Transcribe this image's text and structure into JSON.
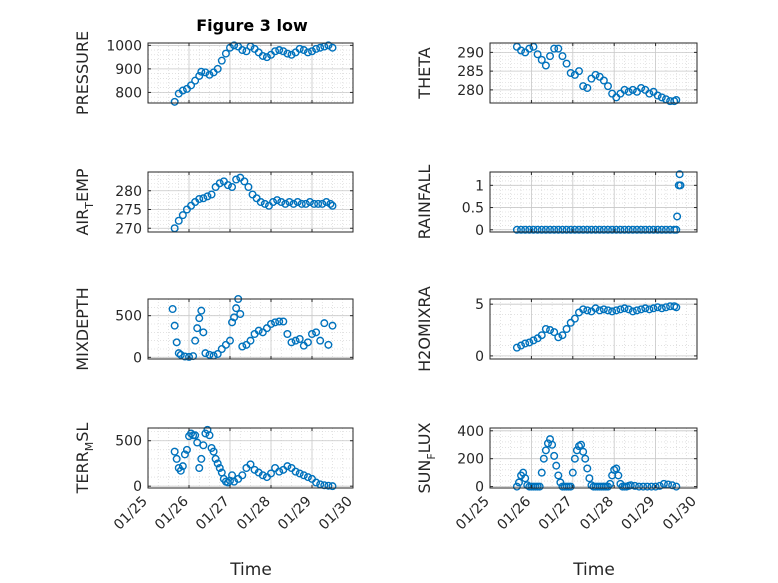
{
  "title": "Figure 3 low",
  "xlabel": "Time",
  "marker_color": "#0072BD",
  "grid": true,
  "chart_data": [
    {
      "type": "scatter",
      "title": "Figure 3 low",
      "ylabel": "PRESSURE",
      "ylim": [
        755,
        1010
      ],
      "yticks": [
        800,
        900,
        1000
      ],
      "xlim": [
        25,
        30
      ],
      "x": [
        25.65,
        25.75,
        25.85,
        25.95,
        26.05,
        26.15,
        26.25,
        26.3,
        26.4,
        26.5,
        26.6,
        26.7,
        26.8,
        26.9,
        27.0,
        27.1,
        27.2,
        27.3,
        27.4,
        27.5,
        27.6,
        27.7,
        27.8,
        27.9,
        28.0,
        28.1,
        28.2,
        28.3,
        28.4,
        28.5,
        28.6,
        28.7,
        28.8,
        28.9,
        29.0,
        29.1,
        29.2,
        29.3,
        29.4,
        29.5
      ],
      "y": [
        760,
        795,
        808,
        815,
        830,
        850,
        870,
        888,
        885,
        875,
        885,
        900,
        935,
        965,
        990,
        1000,
        995,
        980,
        975,
        995,
        985,
        970,
        955,
        950,
        960,
        975,
        980,
        975,
        965,
        960,
        970,
        985,
        980,
        970,
        975,
        985,
        990,
        995,
        1000,
        990
      ]
    },
    {
      "type": "scatter",
      "ylabel": "THETA",
      "ylim": [
        276.5,
        292.5
      ],
      "yticks": [
        280,
        285,
        290
      ],
      "xlim": [
        25,
        30
      ],
      "x": [
        25.65,
        25.75,
        25.85,
        25.95,
        26.05,
        26.15,
        26.25,
        26.35,
        26.45,
        26.55,
        26.65,
        26.75,
        26.85,
        26.95,
        27.05,
        27.15,
        27.25,
        27.35,
        27.45,
        27.55,
        27.65,
        27.75,
        27.85,
        27.95,
        28.05,
        28.15,
        28.25,
        28.35,
        28.45,
        28.55,
        28.65,
        28.75,
        28.85,
        28.95,
        29.05,
        29.15,
        29.25,
        29.35,
        29.45,
        29.5
      ],
      "y": [
        291.5,
        290.5,
        290,
        291,
        291.5,
        289.5,
        288,
        286.5,
        289,
        291,
        291,
        289,
        287,
        284.5,
        284,
        285,
        281,
        280.5,
        283,
        284,
        283.5,
        282.5,
        281,
        279,
        278,
        279,
        280,
        279.5,
        280,
        279.5,
        280.5,
        280,
        279,
        279.5,
        278.5,
        278,
        277.5,
        277,
        277,
        277.3
      ]
    },
    {
      "type": "scatter",
      "ylabel": "AIR",
      "ylabel_sub": "T",
      "ylabel_suffix": "EMP",
      "ylim": [
        269,
        285
      ],
      "yticks": [
        270,
        275,
        280
      ],
      "xlim": [
        25,
        30
      ],
      "x": [
        25.65,
        25.75,
        25.85,
        25.95,
        26.05,
        26.15,
        26.25,
        26.35,
        26.45,
        26.55,
        26.65,
        26.75,
        26.85,
        26.95,
        27.05,
        27.15,
        27.25,
        27.35,
        27.45,
        27.55,
        27.65,
        27.75,
        27.85,
        27.95,
        28.05,
        28.15,
        28.25,
        28.35,
        28.45,
        28.55,
        28.65,
        28.75,
        28.85,
        28.95,
        29.05,
        29.15,
        29.25,
        29.35,
        29.45,
        29.5
      ],
      "y": [
        270,
        272,
        273.5,
        275,
        276,
        277,
        277.8,
        278,
        278.5,
        279,
        281,
        282,
        282.5,
        281.5,
        281,
        283,
        283.5,
        282.5,
        281,
        279,
        278,
        277,
        276.5,
        276,
        277,
        277.5,
        277,
        276.5,
        277,
        276.5,
        277,
        276.5,
        276.5,
        277,
        276.5,
        276.5,
        276.5,
        277,
        276.5,
        276
      ]
    },
    {
      "type": "scatter",
      "ylabel": "RAINFALL",
      "ylim": [
        -0.05,
        1.3
      ],
      "yticks": [
        0,
        0.5,
        1
      ],
      "xlim": [
        25,
        30
      ],
      "x": [
        25.65,
        25.75,
        25.85,
        25.95,
        26.05,
        26.15,
        26.25,
        26.35,
        26.45,
        26.55,
        26.65,
        26.75,
        26.85,
        26.95,
        27.05,
        27.15,
        27.25,
        27.35,
        27.45,
        27.55,
        27.65,
        27.75,
        27.85,
        27.95,
        28.05,
        28.15,
        28.25,
        28.35,
        28.45,
        28.55,
        28.65,
        28.75,
        28.85,
        28.95,
        29.05,
        29.15,
        29.25,
        29.35,
        29.45,
        29.5,
        29.52,
        29.56,
        29.58,
        29.6
      ],
      "y": [
        0,
        0,
        0,
        0,
        0,
        0,
        0,
        0,
        0,
        0,
        0,
        0,
        0,
        0,
        0,
        0,
        0,
        0,
        0,
        0,
        0,
        0,
        0,
        0,
        0,
        0,
        0,
        0,
        0,
        0,
        0,
        0,
        0,
        0,
        0,
        0,
        0,
        0,
        0,
        0,
        0.3,
        1.0,
        1.25,
        1.0
      ]
    },
    {
      "type": "scatter",
      "ylabel": "MIXDEPTH",
      "ylim": [
        -20,
        700
      ],
      "yticks": [
        0,
        500
      ],
      "xlim": [
        25,
        30
      ],
      "x": [
        25.6,
        25.65,
        25.7,
        25.75,
        25.8,
        25.9,
        26.0,
        26.1,
        26.15,
        26.2,
        26.25,
        26.3,
        26.35,
        26.4,
        26.5,
        26.6,
        26.7,
        26.8,
        26.9,
        27.0,
        27.05,
        27.1,
        27.15,
        27.2,
        27.25,
        27.3,
        27.4,
        27.5,
        27.6,
        27.7,
        27.8,
        27.9,
        28.0,
        28.1,
        28.2,
        28.3,
        28.4,
        28.5,
        28.6,
        28.7,
        28.8,
        28.9,
        29.0,
        29.1,
        29.2,
        29.3,
        29.4,
        29.5
      ],
      "y": [
        580,
        380,
        180,
        50,
        30,
        10,
        5,
        15,
        200,
        350,
        470,
        560,
        300,
        50,
        30,
        20,
        40,
        100,
        150,
        200,
        420,
        480,
        590,
        700,
        520,
        130,
        150,
        200,
        280,
        320,
        300,
        350,
        400,
        420,
        430,
        430,
        280,
        180,
        200,
        220,
        140,
        180,
        280,
        300,
        200,
        410,
        150,
        380
      ]
    },
    {
      "type": "scatter",
      "ylabel": "H2OMIXRA",
      "ylim": [
        -0.3,
        5.5
      ],
      "yticks": [
        0,
        5
      ],
      "xlim": [
        25,
        30
      ],
      "x": [
        25.65,
        25.75,
        25.85,
        25.95,
        26.05,
        26.15,
        26.25,
        26.35,
        26.45,
        26.55,
        26.65,
        26.75,
        26.85,
        26.95,
        27.05,
        27.15,
        27.25,
        27.35,
        27.45,
        27.55,
        27.65,
        27.75,
        27.85,
        27.95,
        28.05,
        28.15,
        28.25,
        28.35,
        28.45,
        28.55,
        28.65,
        28.75,
        28.85,
        28.95,
        29.05,
        29.15,
        29.25,
        29.35,
        29.45,
        29.5
      ],
      "y": [
        0.8,
        1.0,
        1.2,
        1.3,
        1.5,
        1.7,
        2.0,
        2.6,
        2.5,
        2.3,
        1.8,
        2.0,
        2.6,
        3.2,
        3.6,
        4.2,
        4.5,
        4.4,
        4.3,
        4.6,
        4.4,
        4.5,
        4.4,
        4.3,
        4.4,
        4.5,
        4.6,
        4.5,
        4.3,
        4.4,
        4.5,
        4.6,
        4.5,
        4.6,
        4.7,
        4.6,
        4.7,
        4.8,
        4.8,
        4.7
      ]
    },
    {
      "type": "scatter",
      "ylabel": "TERR",
      "ylabel_sub": "M",
      "ylabel_suffix": "SL",
      "ylim": [
        -20,
        640
      ],
      "yticks": [
        0,
        500
      ],
      "xlim": [
        25,
        30
      ],
      "x": [
        25.65,
        25.7,
        25.75,
        25.8,
        25.85,
        25.9,
        25.95,
        26.0,
        26.05,
        26.1,
        26.15,
        26.2,
        26.25,
        26.3,
        26.35,
        26.4,
        26.45,
        26.5,
        26.55,
        26.6,
        26.65,
        26.7,
        26.75,
        26.8,
        26.85,
        26.9,
        26.95,
        27.0,
        27.05,
        27.1,
        27.2,
        27.3,
        27.4,
        27.5,
        27.6,
        27.7,
        27.8,
        27.9,
        28.0,
        28.1,
        28.2,
        28.3,
        28.4,
        28.5,
        28.6,
        28.7,
        28.8,
        28.9,
        29.0,
        29.1,
        29.2,
        29.3,
        29.4,
        29.5
      ],
      "y": [
        380,
        300,
        200,
        170,
        220,
        350,
        400,
        550,
        580,
        560,
        560,
        480,
        200,
        300,
        450,
        580,
        620,
        560,
        420,
        380,
        300,
        250,
        200,
        150,
        80,
        50,
        40,
        60,
        120,
        50,
        80,
        120,
        200,
        240,
        180,
        150,
        120,
        100,
        140,
        200,
        160,
        180,
        220,
        200,
        160,
        140,
        120,
        100,
        80,
        40,
        20,
        10,
        5,
        0
      ]
    },
    {
      "type": "scatter",
      "ylabel": "SUN",
      "ylabel_sub": "F",
      "ylabel_suffix": "LUX",
      "ylim": [
        -10,
        420
      ],
      "yticks": [
        0,
        200,
        400
      ],
      "xlim": [
        25,
        30
      ],
      "x": [
        25.65,
        25.7,
        25.75,
        25.8,
        25.85,
        25.9,
        25.95,
        26.0,
        26.05,
        26.1,
        26.15,
        26.2,
        26.25,
        26.3,
        26.35,
        26.4,
        26.45,
        26.5,
        26.55,
        26.6,
        26.65,
        26.7,
        26.75,
        26.8,
        26.85,
        26.9,
        26.95,
        27.0,
        27.05,
        27.1,
        27.15,
        27.2,
        27.25,
        27.3,
        27.35,
        27.4,
        27.45,
        27.5,
        27.55,
        27.6,
        27.65,
        27.7,
        27.75,
        27.8,
        27.85,
        27.9,
        27.95,
        28.0,
        28.05,
        28.1,
        28.15,
        28.2,
        28.25,
        28.3,
        28.35,
        28.4,
        28.5,
        28.6,
        28.7,
        28.8,
        28.9,
        29.0,
        29.1,
        29.2,
        29.3,
        29.4,
        29.5
      ],
      "y": [
        0,
        30,
        80,
        100,
        60,
        10,
        0,
        0,
        0,
        0,
        0,
        0,
        100,
        200,
        260,
        310,
        340,
        300,
        220,
        150,
        80,
        30,
        0,
        0,
        0,
        0,
        0,
        100,
        200,
        260,
        290,
        300,
        250,
        200,
        130,
        60,
        10,
        0,
        0,
        0,
        0,
        0,
        0,
        0,
        0,
        20,
        80,
        120,
        130,
        80,
        20,
        0,
        0,
        0,
        5,
        10,
        5,
        0,
        0,
        0,
        0,
        0,
        5,
        20,
        15,
        10,
        0
      ]
    }
  ],
  "xticks": {
    "values": [
      25,
      26,
      27,
      28,
      29,
      30
    ],
    "labels": [
      "01/25",
      "01/26",
      "01/27",
      "01/28",
      "01/29",
      "01/30"
    ]
  }
}
